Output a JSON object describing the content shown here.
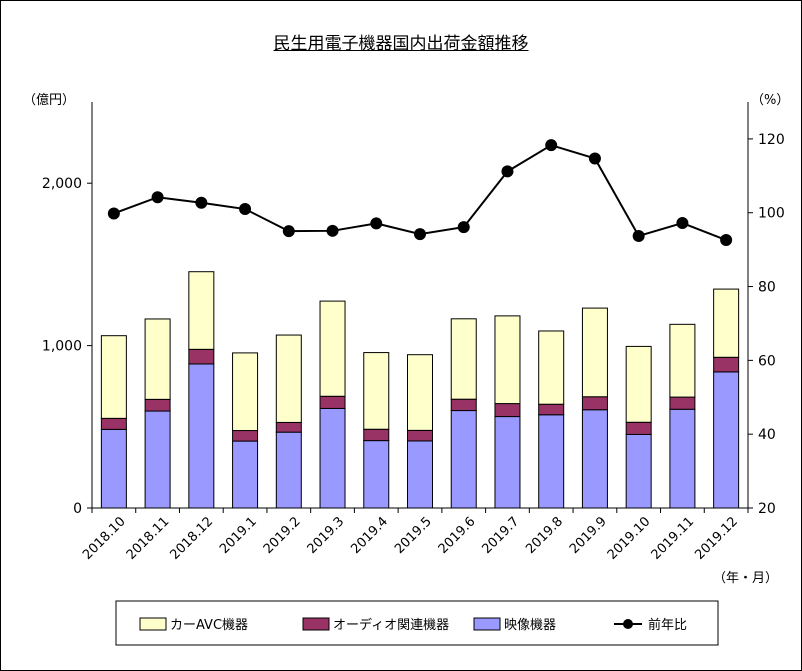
{
  "chart_data": {
    "type": "bar",
    "title": "民生用電子機器国内出荷金額推移",
    "xlabel": "（年・月）",
    "ylabel_left": "（億円）",
    "ylabel_right": "（%）",
    "stacked": true,
    "categories": [
      "2018.10",
      "2018.11",
      "2018.12",
      "2019.1",
      "2019.2",
      "2019.3",
      "2019.4",
      "2019.5",
      "2019.6",
      "2019.7",
      "2019.8",
      "2019.9",
      "2019.10",
      "2019.11",
      "2019.12"
    ],
    "series": [
      {
        "name": "映像機器",
        "type": "bar",
        "axis": "left",
        "color": "#9999ff",
        "values": [
          484,
          597,
          887,
          412,
          467,
          613,
          415,
          413,
          600,
          563,
          574,
          605,
          453,
          608,
          838
        ]
      },
      {
        "name": "オーディオ関連機器",
        "type": "bar",
        "axis": "left",
        "color": "#993366",
        "values": [
          68,
          72,
          90,
          65,
          60,
          75,
          70,
          65,
          70,
          80,
          65,
          80,
          75,
          75,
          90
        ]
      },
      {
        "name": "カーAVC機器",
        "type": "bar",
        "axis": "left",
        "color": "#ffffcc",
        "values": [
          509,
          495,
          478,
          478,
          538,
          586,
          472,
          466,
          495,
          540,
          451,
          546,
          467,
          448,
          420
        ]
      },
      {
        "name": "前年比",
        "type": "line",
        "axis": "right",
        "color": "#000000",
        "values": [
          99.8,
          104.2,
          102.7,
          101.0,
          95.0,
          95.1,
          97.1,
          94.2,
          96.1,
          111.2,
          118.3,
          114.7,
          93.7,
          97.2,
          92.6
        ]
      }
    ],
    "ylim_left": [
      0,
      2500
    ],
    "yticks_left": [
      "0",
      "1,000",
      "2,000"
    ],
    "yticks_left_values": [
      0,
      1000,
      2000
    ],
    "ylim_right": [
      20,
      130
    ],
    "yticks_right": [
      "20",
      "40",
      "60",
      "80",
      "100",
      "120"
    ],
    "yticks_right_values": [
      20,
      40,
      60,
      80,
      100,
      120
    ],
    "legend_position": "bottom",
    "grid": false
  }
}
